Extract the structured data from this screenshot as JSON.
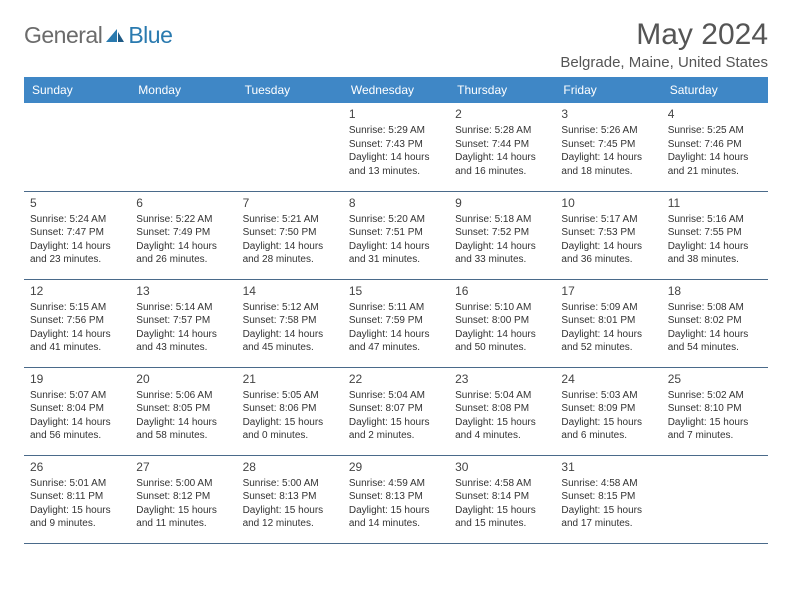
{
  "brand": {
    "part1": "General",
    "part2": "Blue"
  },
  "title": "May 2024",
  "location": "Belgrade, Maine, United States",
  "colors": {
    "header_bg": "#3f87c6",
    "header_text": "#ffffff",
    "border": "#4a6a8a",
    "logo_gray": "#6b6b6b",
    "logo_blue": "#2a7aaf",
    "text": "#333333"
  },
  "day_headers": [
    "Sunday",
    "Monday",
    "Tuesday",
    "Wednesday",
    "Thursday",
    "Friday",
    "Saturday"
  ],
  "weeks": [
    [
      null,
      null,
      null,
      {
        "n": "1",
        "sr": "5:29 AM",
        "ss": "7:43 PM",
        "d1": "14 hours",
        "d2": "and 13 minutes."
      },
      {
        "n": "2",
        "sr": "5:28 AM",
        "ss": "7:44 PM",
        "d1": "14 hours",
        "d2": "and 16 minutes."
      },
      {
        "n": "3",
        "sr": "5:26 AM",
        "ss": "7:45 PM",
        "d1": "14 hours",
        "d2": "and 18 minutes."
      },
      {
        "n": "4",
        "sr": "5:25 AM",
        "ss": "7:46 PM",
        "d1": "14 hours",
        "d2": "and 21 minutes."
      }
    ],
    [
      {
        "n": "5",
        "sr": "5:24 AM",
        "ss": "7:47 PM",
        "d1": "14 hours",
        "d2": "and 23 minutes."
      },
      {
        "n": "6",
        "sr": "5:22 AM",
        "ss": "7:49 PM",
        "d1": "14 hours",
        "d2": "and 26 minutes."
      },
      {
        "n": "7",
        "sr": "5:21 AM",
        "ss": "7:50 PM",
        "d1": "14 hours",
        "d2": "and 28 minutes."
      },
      {
        "n": "8",
        "sr": "5:20 AM",
        "ss": "7:51 PM",
        "d1": "14 hours",
        "d2": "and 31 minutes."
      },
      {
        "n": "9",
        "sr": "5:18 AM",
        "ss": "7:52 PM",
        "d1": "14 hours",
        "d2": "and 33 minutes."
      },
      {
        "n": "10",
        "sr": "5:17 AM",
        "ss": "7:53 PM",
        "d1": "14 hours",
        "d2": "and 36 minutes."
      },
      {
        "n": "11",
        "sr": "5:16 AM",
        "ss": "7:55 PM",
        "d1": "14 hours",
        "d2": "and 38 minutes."
      }
    ],
    [
      {
        "n": "12",
        "sr": "5:15 AM",
        "ss": "7:56 PM",
        "d1": "14 hours",
        "d2": "and 41 minutes."
      },
      {
        "n": "13",
        "sr": "5:14 AM",
        "ss": "7:57 PM",
        "d1": "14 hours",
        "d2": "and 43 minutes."
      },
      {
        "n": "14",
        "sr": "5:12 AM",
        "ss": "7:58 PM",
        "d1": "14 hours",
        "d2": "and 45 minutes."
      },
      {
        "n": "15",
        "sr": "5:11 AM",
        "ss": "7:59 PM",
        "d1": "14 hours",
        "d2": "and 47 minutes."
      },
      {
        "n": "16",
        "sr": "5:10 AM",
        "ss": "8:00 PM",
        "d1": "14 hours",
        "d2": "and 50 minutes."
      },
      {
        "n": "17",
        "sr": "5:09 AM",
        "ss": "8:01 PM",
        "d1": "14 hours",
        "d2": "and 52 minutes."
      },
      {
        "n": "18",
        "sr": "5:08 AM",
        "ss": "8:02 PM",
        "d1": "14 hours",
        "d2": "and 54 minutes."
      }
    ],
    [
      {
        "n": "19",
        "sr": "5:07 AM",
        "ss": "8:04 PM",
        "d1": "14 hours",
        "d2": "and 56 minutes."
      },
      {
        "n": "20",
        "sr": "5:06 AM",
        "ss": "8:05 PM",
        "d1": "14 hours",
        "d2": "and 58 minutes."
      },
      {
        "n": "21",
        "sr": "5:05 AM",
        "ss": "8:06 PM",
        "d1": "15 hours",
        "d2": "and 0 minutes."
      },
      {
        "n": "22",
        "sr": "5:04 AM",
        "ss": "8:07 PM",
        "d1": "15 hours",
        "d2": "and 2 minutes."
      },
      {
        "n": "23",
        "sr": "5:04 AM",
        "ss": "8:08 PM",
        "d1": "15 hours",
        "d2": "and 4 minutes."
      },
      {
        "n": "24",
        "sr": "5:03 AM",
        "ss": "8:09 PM",
        "d1": "15 hours",
        "d2": "and 6 minutes."
      },
      {
        "n": "25",
        "sr": "5:02 AM",
        "ss": "8:10 PM",
        "d1": "15 hours",
        "d2": "and 7 minutes."
      }
    ],
    [
      {
        "n": "26",
        "sr": "5:01 AM",
        "ss": "8:11 PM",
        "d1": "15 hours",
        "d2": "and 9 minutes."
      },
      {
        "n": "27",
        "sr": "5:00 AM",
        "ss": "8:12 PM",
        "d1": "15 hours",
        "d2": "and 11 minutes."
      },
      {
        "n": "28",
        "sr": "5:00 AM",
        "ss": "8:13 PM",
        "d1": "15 hours",
        "d2": "and 12 minutes."
      },
      {
        "n": "29",
        "sr": "4:59 AM",
        "ss": "8:13 PM",
        "d1": "15 hours",
        "d2": "and 14 minutes."
      },
      {
        "n": "30",
        "sr": "4:58 AM",
        "ss": "8:14 PM",
        "d1": "15 hours",
        "d2": "and 15 minutes."
      },
      {
        "n": "31",
        "sr": "4:58 AM",
        "ss": "8:15 PM",
        "d1": "15 hours",
        "d2": "and 17 minutes."
      },
      null
    ]
  ],
  "labels": {
    "sunrise": "Sunrise: ",
    "sunset": "Sunset: ",
    "daylight": "Daylight: "
  }
}
